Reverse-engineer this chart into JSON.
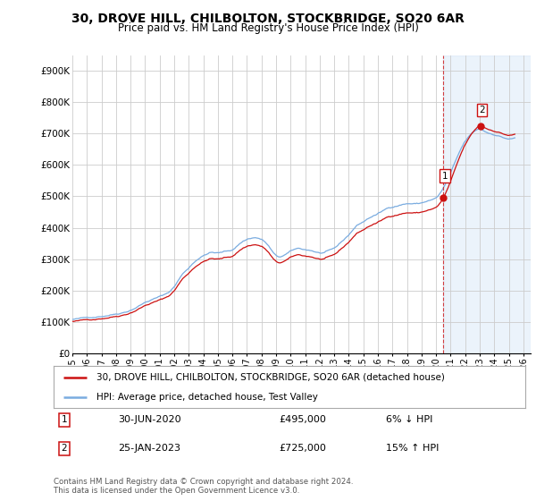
{
  "title": "30, DROVE HILL, CHILBOLTON, STOCKBRIDGE, SO20 6AR",
  "subtitle": "Price paid vs. HM Land Registry's House Price Index (HPI)",
  "ylabel_ticks": [
    "£0",
    "£100K",
    "£200K",
    "£300K",
    "£400K",
    "£500K",
    "£600K",
    "£700K",
    "£800K",
    "£900K"
  ],
  "ytick_values": [
    0,
    100000,
    200000,
    300000,
    400000,
    500000,
    600000,
    700000,
    800000,
    900000
  ],
  "ylim": [
    0,
    950000
  ],
  "xlim_start": 1995.0,
  "xlim_end": 2026.5,
  "hpi_color": "#7aace0",
  "price_color": "#cc1111",
  "shade_color": "#c8ddf5",
  "marker1_x": 2020.5,
  "marker1_y": 495000,
  "marker2_x": 2023.07,
  "marker2_y": 725000,
  "legend_line1": "30, DROVE HILL, CHILBOLTON, STOCKBRIDGE, SO20 6AR (detached house)",
  "legend_line2": "HPI: Average price, detached house, Test Valley",
  "annotation1_label": "1",
  "annotation1_date": "30-JUN-2020",
  "annotation1_price": "£495,000",
  "annotation1_hpi": "6% ↓ HPI",
  "annotation2_label": "2",
  "annotation2_date": "25-JAN-2023",
  "annotation2_price": "£725,000",
  "annotation2_hpi": "15% ↑ HPI",
  "footnote": "Contains HM Land Registry data © Crown copyright and database right 2024.\nThis data is licensed under the Open Government Licence v3.0.",
  "bg_color": "#ffffff",
  "grid_color": "#cccccc"
}
